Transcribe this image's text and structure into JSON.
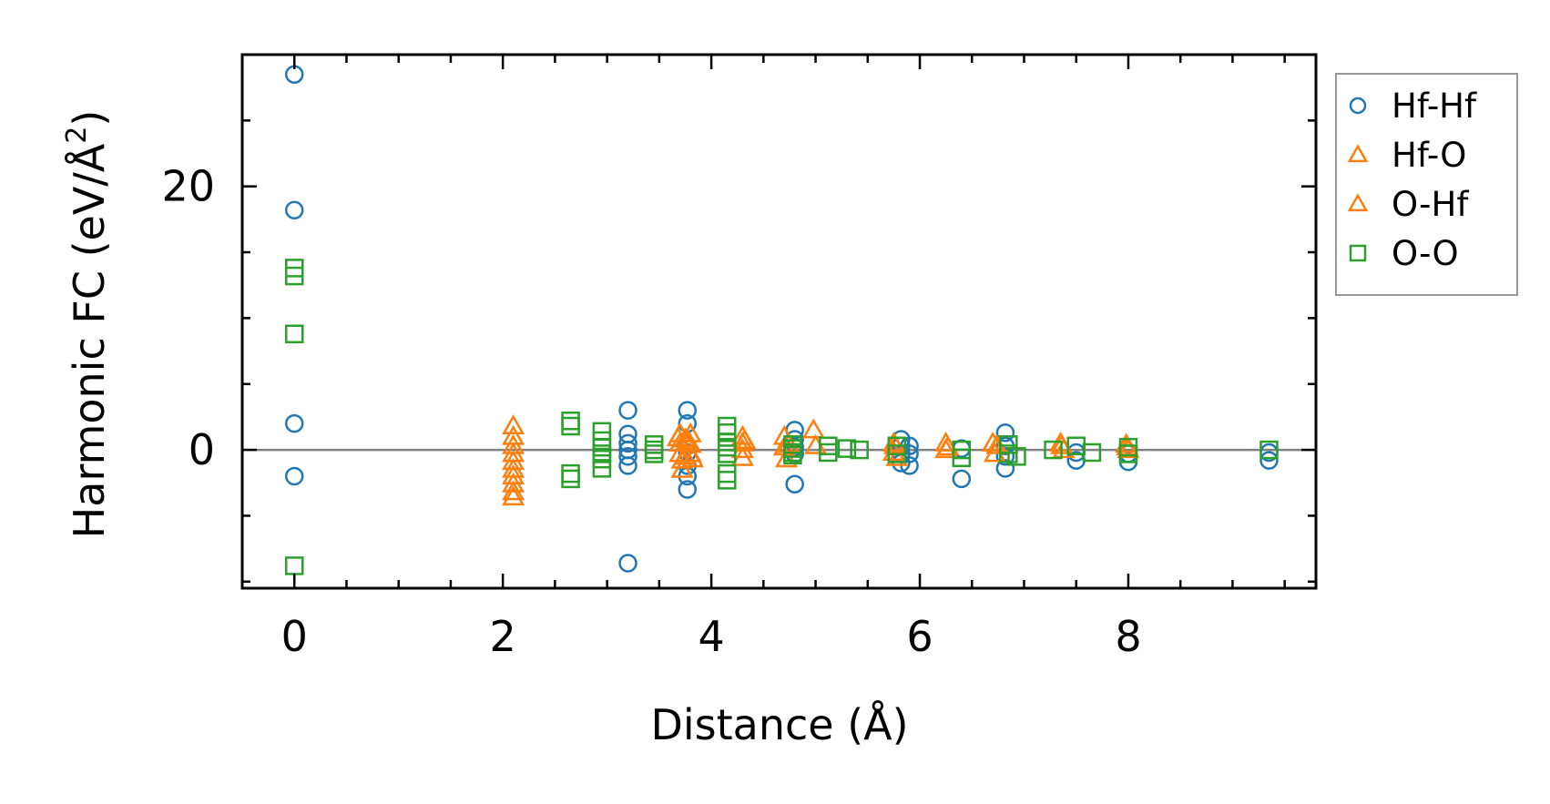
{
  "chart_data": {
    "type": "scatter",
    "title": "",
    "xlabel": "Distance (Å)",
    "ylabel": "Harmonic FC (eV/Å",
    "ylabel_sup": "2",
    "ylabel_end": ")",
    "xlim": [
      -0.5,
      9.8
    ],
    "ylim": [
      -10.5,
      30
    ],
    "x_ticks": [
      0,
      2,
      4,
      6,
      8
    ],
    "x_tick_labels": [
      "0",
      "2",
      "4",
      "6",
      "8"
    ],
    "x_minor_step": 0.5,
    "y_ticks": [
      0,
      20
    ],
    "y_tick_labels": [
      "0",
      "20"
    ],
    "y_minor_step": 5,
    "reference_line_y": 0,
    "legend_position": "outside-right-top",
    "series": [
      {
        "name": "Hf-Hf",
        "marker": "circle",
        "color": "#1f77b4",
        "x": [
          0,
          0,
          0,
          0,
          3.2,
          3.2,
          3.2,
          3.2,
          3.2,
          3.2,
          3.2,
          3.77,
          3.77,
          3.77,
          3.77,
          3.77,
          3.77,
          3.77,
          4.8,
          4.8,
          4.8,
          4.8,
          4.8,
          5.82,
          5.82,
          5.82,
          5.82,
          5.9,
          5.9,
          5.9,
          6.4,
          6.4,
          6.82,
          6.82,
          6.82,
          6.82,
          7.5,
          7.5,
          8.0,
          8.0,
          9.35,
          9.35
        ],
        "y": [
          28.5,
          18.2,
          2.0,
          -2.0,
          3.0,
          1.2,
          0.5,
          0,
          -0.5,
          -1.2,
          -8.6,
          3.0,
          2.0,
          0.3,
          -0.2,
          -1.2,
          -2.0,
          -3.0,
          1.5,
          0.8,
          0.2,
          -0.3,
          -2.6,
          0.8,
          0.3,
          -0.3,
          -1.0,
          0.3,
          -0.3,
          -1.2,
          0.1,
          -2.2,
          1.3,
          0.3,
          -0.5,
          -1.4,
          -0.2,
          -0.8,
          -0.3,
          -0.9,
          -0.2,
          -0.8
        ]
      },
      {
        "name": "Hf-O",
        "marker": "triangle",
        "color": "#ff7f0e",
        "x": [
          2.1,
          2.1,
          2.1,
          2.1,
          2.1,
          2.1,
          2.1,
          2.1,
          2.1,
          2.1,
          3.7,
          3.7,
          3.7,
          3.72,
          3.72,
          3.75,
          3.75,
          3.8,
          3.8,
          3.8,
          3.82,
          4.3,
          4.3,
          4.3,
          4.3,
          4.7,
          4.7,
          4.72,
          4.98,
          5.0,
          5.75,
          5.75,
          5.78,
          6.25,
          6.25,
          6.7,
          6.72,
          7.35,
          7.38,
          7.98,
          8.0
        ],
        "y": [
          1.8,
          1.0,
          0.3,
          -0.3,
          -0.9,
          -1.5,
          -2.0,
          -2.6,
          -3.2,
          -3.6,
          1.2,
          0.5,
          -0.3,
          -0.8,
          -1.5,
          0.8,
          -0.5,
          1.2,
          0.4,
          -0.3,
          -0.7,
          1.0,
          0.5,
          0,
          -0.6,
          1.0,
          0.2,
          -0.7,
          1.5,
          0.3,
          0.5,
          -0.2,
          -0.6,
          0.5,
          0,
          0.5,
          -0.3,
          0.5,
          0,
          0.4,
          0
        ]
      },
      {
        "name": "O-Hf",
        "marker": "triangle",
        "color": "#ff7f0e",
        "x": [
          3.68,
          3.78,
          4.32,
          4.74,
          5.76,
          6.27,
          6.74,
          7.36,
          7.99
        ],
        "y": [
          0.9,
          0.6,
          0.7,
          0.4,
          0.3,
          0.2,
          0.3,
          0.3,
          0.2
        ],
        "note": "overlaps Hf-O markers"
      },
      {
        "name": "O-O",
        "marker": "square",
        "color": "#2ca02c",
        "x": [
          0,
          0,
          0,
          0,
          2.65,
          2.65,
          2.65,
          2.65,
          2.95,
          2.95,
          2.95,
          2.95,
          2.95,
          2.95,
          3.45,
          3.45,
          3.45,
          4.15,
          4.15,
          4.15,
          4.15,
          4.15,
          4.15,
          4.15,
          4.78,
          4.78,
          4.78,
          4.78,
          5.12,
          5.12,
          5.3,
          5.42,
          5.78,
          5.78,
          6.4,
          6.4,
          6.85,
          6.85,
          6.93,
          7.28,
          7.5,
          7.65,
          8.0,
          8.0,
          9.35
        ],
        "y": [
          13.8,
          13.2,
          8.8,
          -8.8,
          2.2,
          1.8,
          -1.8,
          -2.2,
          1.4,
          0.7,
          0.2,
          -0.3,
          -0.7,
          -1.4,
          0.4,
          0,
          -0.3,
          1.8,
          1.3,
          0.6,
          0.2,
          -0.3,
          -1.8,
          -2.3,
          0.4,
          0.1,
          -0.2,
          -0.4,
          0.3,
          -0.2,
          0.1,
          0,
          0.3,
          -0.3,
          0,
          -0.6,
          0.4,
          -0.3,
          -0.5,
          0,
          0.3,
          -0.2,
          0.2,
          -0.3,
          0
        ]
      }
    ]
  }
}
